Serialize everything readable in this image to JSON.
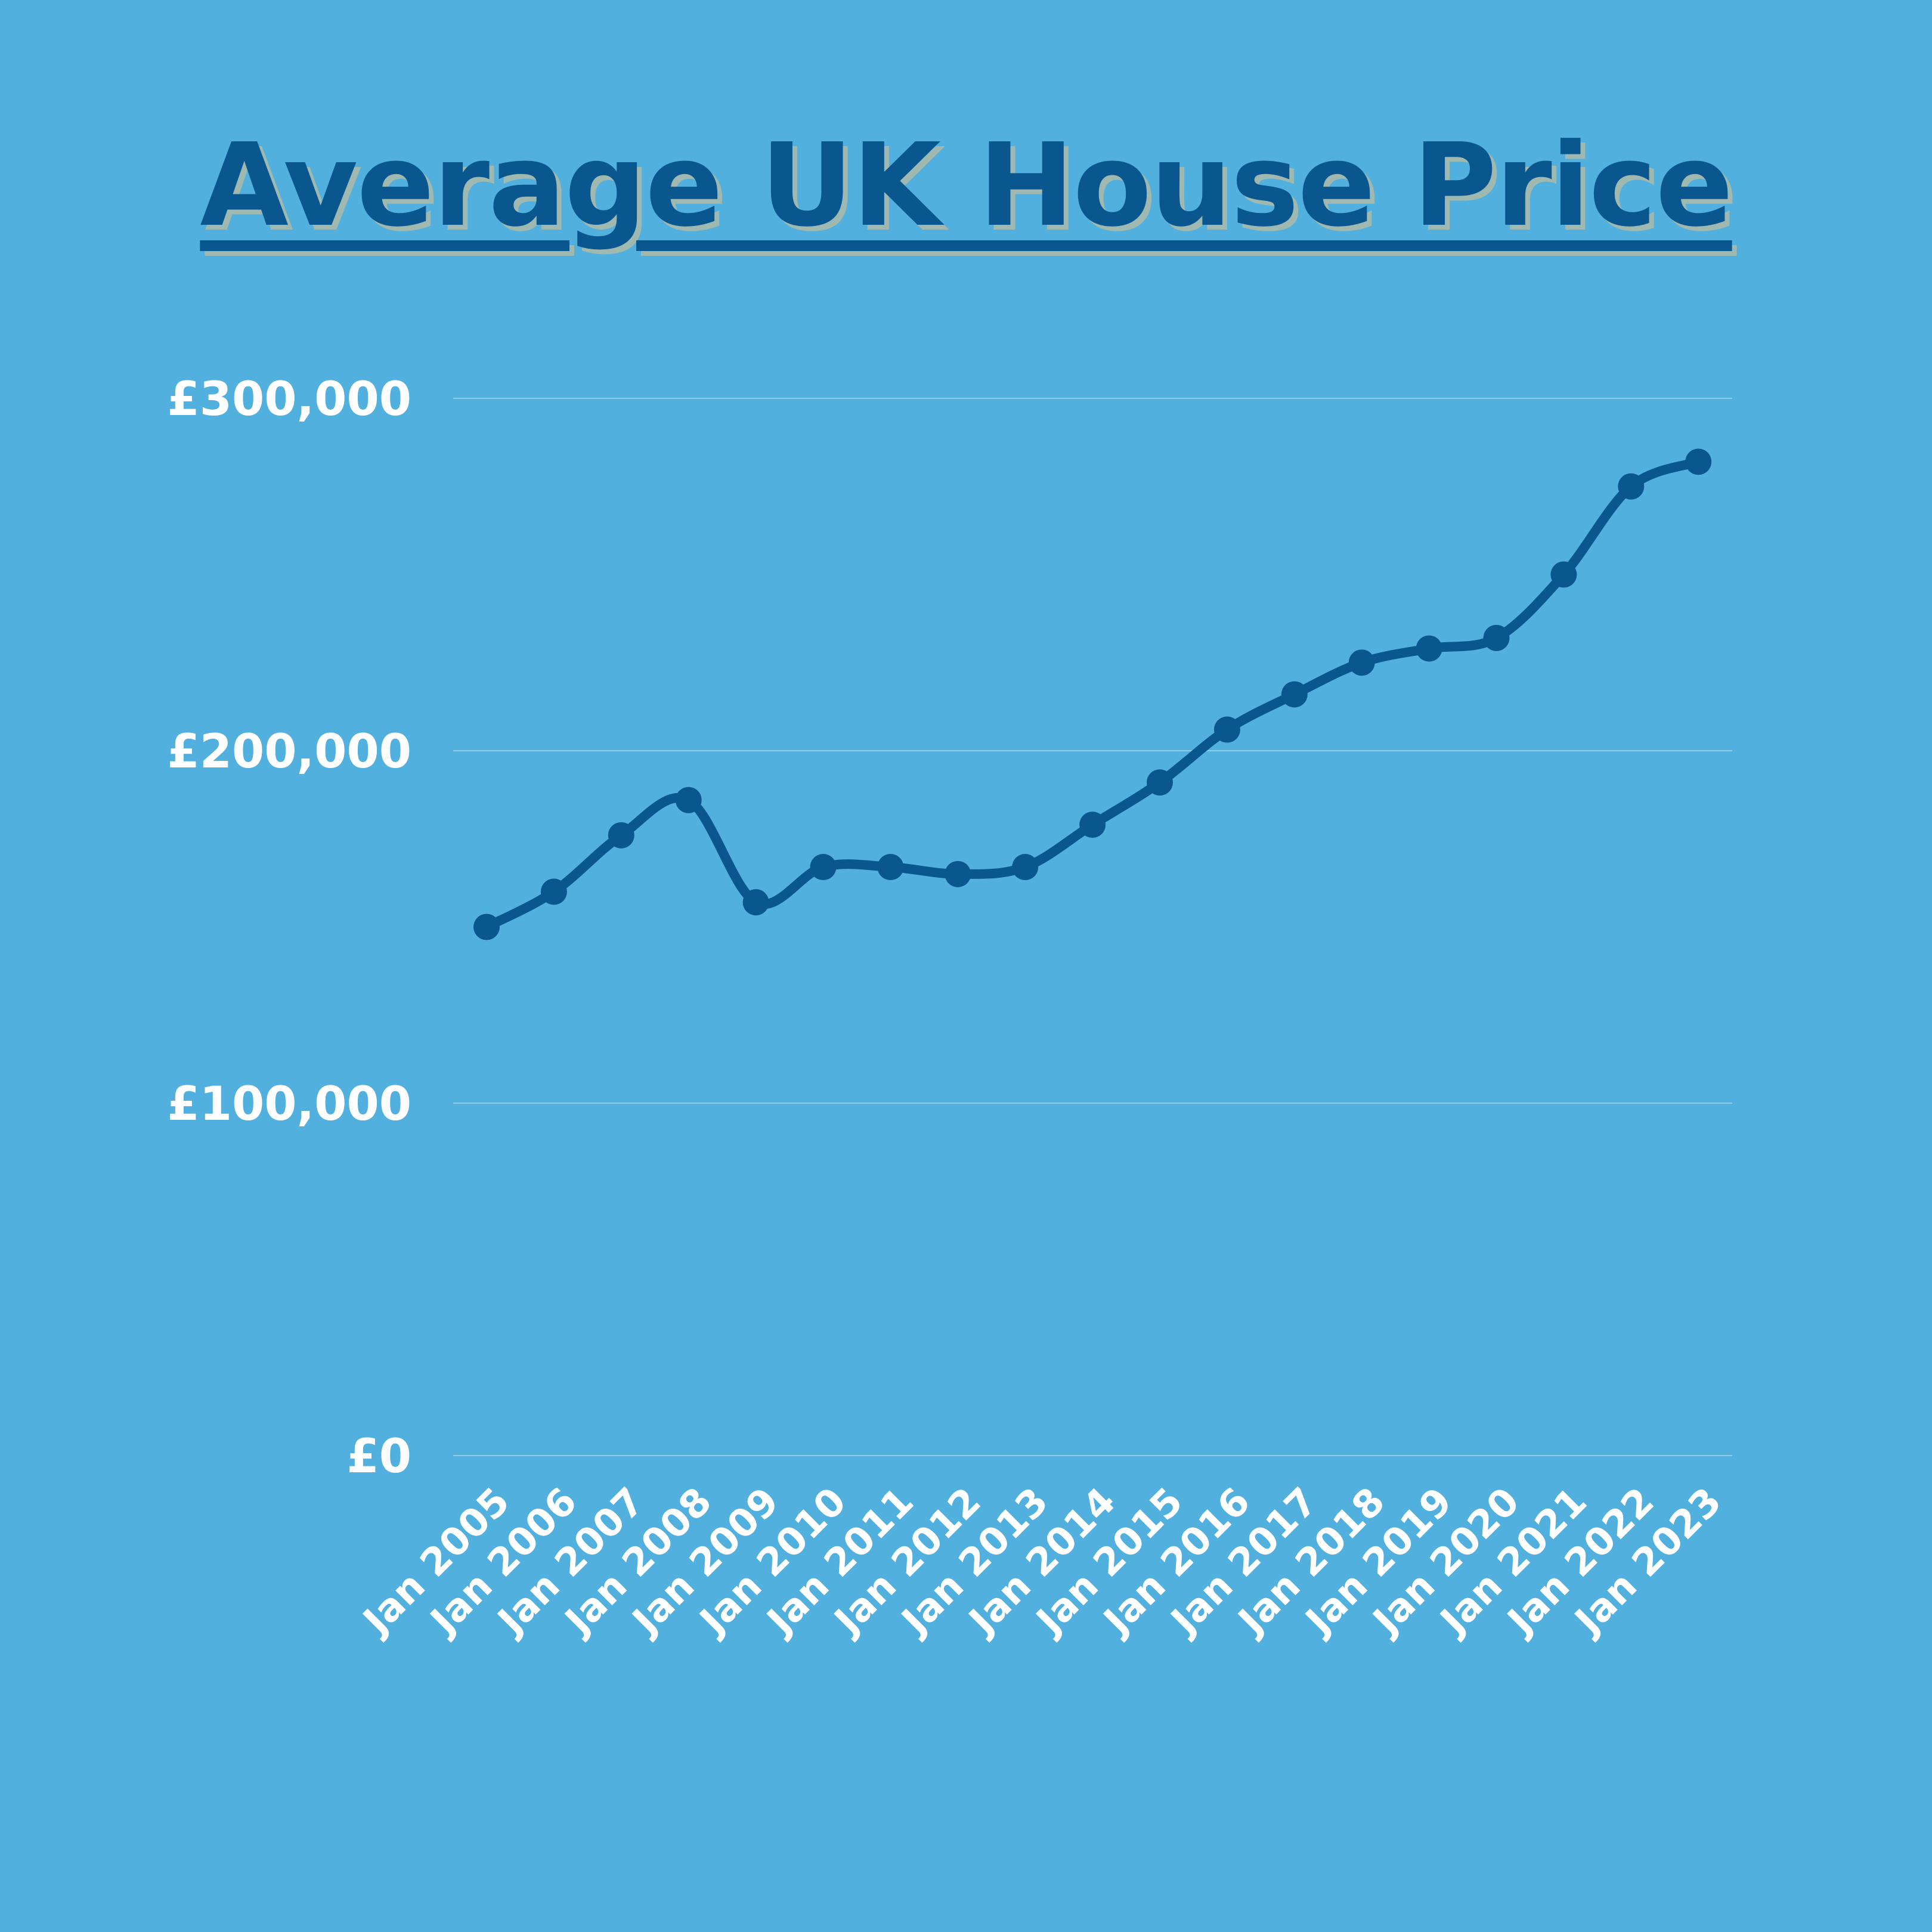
{
  "chart_data": {
    "type": "line",
    "title": "Average UK House Price",
    "xlabel": "",
    "ylabel": "",
    "ylim": [
      0,
      300000
    ],
    "y_ticks": [
      {
        "value": 0,
        "label": "£0"
      },
      {
        "value": 100000,
        "label": "£100,000"
      },
      {
        "value": 200000,
        "label": "£200,000"
      },
      {
        "value": 300000,
        "label": "£300,000"
      }
    ],
    "grid": true,
    "legend": "none",
    "colors": {
      "background": "#52b0de",
      "line": "#0a578f",
      "text": "#ffffff",
      "title": "#0a578f"
    },
    "categories": [
      "Jan 2005",
      "Jan 2006",
      "Jan 2007",
      "Jan 2008",
      "Jan 2009",
      "Jan 2010",
      "Jan 2011",
      "Jan 2012",
      "Jan 2013",
      "Jan 2014",
      "Jan 2015",
      "Jan 2016",
      "Jan 2017",
      "Jan 2018",
      "Jan 2019",
      "Jan 2020",
      "Jan 2021",
      "Jan 2022",
      "Jan 2023"
    ],
    "series": [
      {
        "values": [
          150000,
          160000,
          176000,
          186000,
          157000,
          167000,
          167000,
          165000,
          167000,
          179000,
          191000,
          206000,
          216000,
          225000,
          229000,
          232000,
          250000,
          275000,
          282000
        ]
      }
    ]
  }
}
